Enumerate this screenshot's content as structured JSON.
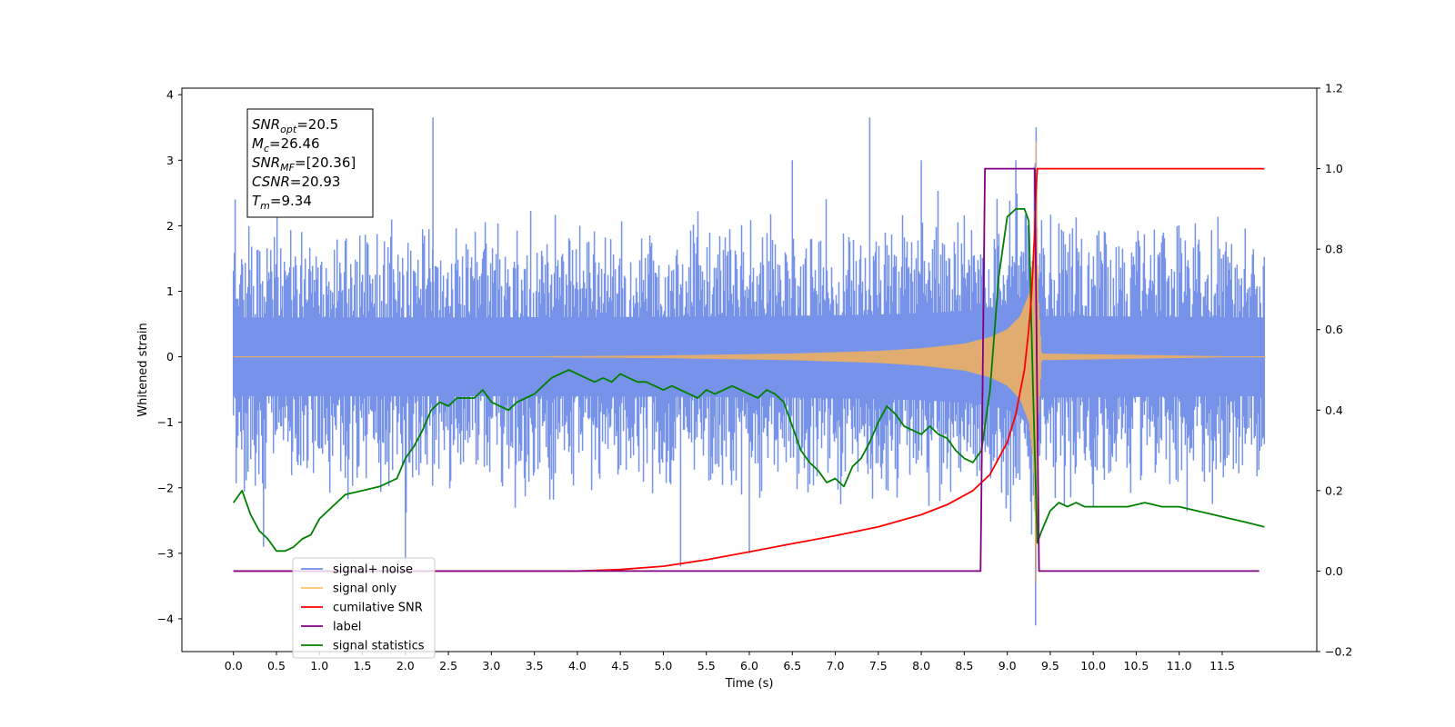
{
  "chart_data": {
    "type": "line",
    "xlabel": "Time (s)",
    "ylabel_left": "Whitened strain",
    "ylabel_right": "",
    "xlim": [
      -0.6,
      12.6
    ],
    "ylim_left": [
      -4.5,
      4.1
    ],
    "ylim_right": [
      -0.2,
      1.2
    ],
    "x_ticks": [
      0.0,
      0.5,
      1.0,
      1.5,
      2.0,
      2.5,
      3.0,
      3.5,
      4.0,
      4.5,
      5.0,
      5.5,
      6.0,
      6.5,
      7.0,
      7.5,
      8.0,
      8.5,
      9.0,
      9.5,
      10.0,
      10.5,
      11.0,
      11.5
    ],
    "x_tick_labels": [
      "0.0",
      "0.5",
      "1.0",
      "1.5",
      "2.0",
      "2.5",
      "3.0",
      "3.5",
      "4.0",
      "4.5",
      "5.0",
      "5.5",
      "6.0",
      "6.5",
      "7.0",
      "7.5",
      "8.0",
      "8.5",
      "9.0",
      "9.5",
      "10.0",
      "10.5",
      "11.0",
      "11.5"
    ],
    "y_left_ticks": [
      -4,
      -3,
      -2,
      -1,
      0,
      1,
      2,
      3,
      4
    ],
    "y_left_tick_labels": [
      "−4",
      "−3",
      "−2",
      "−1",
      "0",
      "1",
      "2",
      "3",
      "4"
    ],
    "y_right_ticks": [
      -0.2,
      0.0,
      0.2,
      0.4,
      0.6,
      0.8,
      1.0,
      1.2
    ],
    "y_right_tick_labels": [
      "−0.2",
      "0.0",
      "0.2",
      "0.4",
      "0.6",
      "0.8",
      "1.0",
      "1.2"
    ],
    "grid": false,
    "legend_position": "lower-left",
    "legend": [
      {
        "label": "signal+ noise",
        "color": "#6f8ce8"
      },
      {
        "label": "signal only",
        "color": "#ffc266"
      },
      {
        "label": "cumilative SNR",
        "color": "#ff0000"
      },
      {
        "label": "label",
        "color": "#800080"
      },
      {
        "label": "signal statistics",
        "color": "#008000"
      }
    ],
    "annotation": {
      "lines": [
        {
          "base": "SNR",
          "sub": "opt",
          "rest": "=20.5"
        },
        {
          "base": "M",
          "sub": "c",
          "rest": "=26.46"
        },
        {
          "base": "SNR",
          "sub": "MF",
          "rest": "=[20.36]"
        },
        {
          "base": "CSNR",
          "sub": "",
          "rest": "=20.93"
        },
        {
          "base": "T",
          "sub": "m",
          "rest": "=9.34"
        }
      ]
    },
    "series": [
      {
        "name": "signal+ noise",
        "axis": "left",
        "color": "#6f8ce8",
        "style": "noise",
        "x_range": [
          0.0,
          11.99
        ],
        "typical_range": [
          -1.6,
          1.7
        ],
        "peaks_x": [
          0.02,
          0.35,
          2.0,
          2.32,
          5.2,
          6.0,
          6.5,
          7.4,
          8.0,
          9.1,
          9.33
        ],
        "peaks_y": [
          2.4,
          -2.9,
          -3.1,
          3.65,
          -3.2,
          -3.0,
          3.0,
          3.65,
          3.0,
          3.0,
          -4.1
        ]
      },
      {
        "name": "signal only",
        "axis": "left",
        "color": "#f4b05a",
        "style": "chirp",
        "x": [
          0.0,
          3.0,
          5.0,
          6.5,
          7.5,
          8.0,
          8.5,
          8.8,
          9.0,
          9.15,
          9.25,
          9.3,
          9.32,
          9.34,
          9.36,
          9.4,
          12.0
        ],
        "envelope": [
          0.0,
          0.005,
          0.02,
          0.05,
          0.09,
          0.13,
          0.2,
          0.3,
          0.42,
          0.62,
          0.95,
          1.5,
          2.5,
          3.5,
          1.0,
          0.05,
          0.0
        ],
        "y_min": -3.7,
        "y_max": 3.55
      },
      {
        "name": "cumilative SNR",
        "axis": "right",
        "x": [
          0.0,
          4.0,
          4.5,
          5.0,
          5.5,
          6.0,
          6.5,
          7.0,
          7.5,
          8.0,
          8.3,
          8.6,
          8.8,
          9.0,
          9.1,
          9.2,
          9.25,
          9.28,
          9.3,
          9.32,
          9.33,
          9.34,
          9.35,
          11.99
        ],
        "values": [
          0.0,
          0.0,
          0.004,
          0.012,
          0.028,
          0.048,
          0.068,
          0.088,
          0.11,
          0.14,
          0.165,
          0.2,
          0.24,
          0.32,
          0.39,
          0.5,
          0.6,
          0.68,
          0.76,
          0.85,
          0.92,
          0.97,
          1.0,
          1.0
        ],
        "color": "#ff0000"
      },
      {
        "name": "label",
        "axis": "right",
        "x": [
          0.0,
          8.69,
          8.74,
          9.32,
          9.37,
          11.93
        ],
        "values": [
          0.0,
          0.0,
          1.0,
          1.0,
          0.0,
          0.0
        ],
        "color": "#800080"
      },
      {
        "name": "signal statistics",
        "axis": "right",
        "x": [
          0.0,
          0.1,
          0.2,
          0.3,
          0.4,
          0.5,
          0.6,
          0.7,
          0.8,
          0.9,
          1.0,
          1.1,
          1.2,
          1.3,
          1.5,
          1.7,
          1.9,
          2.0,
          2.1,
          2.2,
          2.3,
          2.4,
          2.5,
          2.6,
          2.8,
          2.9,
          3.0,
          3.1,
          3.2,
          3.3,
          3.4,
          3.5,
          3.6,
          3.7,
          3.8,
          3.9,
          4.0,
          4.1,
          4.2,
          4.3,
          4.4,
          4.5,
          4.6,
          4.7,
          4.8,
          4.9,
          5.0,
          5.1,
          5.2,
          5.3,
          5.4,
          5.5,
          5.6,
          5.7,
          5.8,
          5.9,
          6.0,
          6.1,
          6.2,
          6.3,
          6.4,
          6.5,
          6.6,
          6.7,
          6.8,
          6.9,
          7.0,
          7.1,
          7.2,
          7.3,
          7.4,
          7.5,
          7.6,
          7.7,
          7.8,
          7.9,
          8.0,
          8.1,
          8.2,
          8.3,
          8.4,
          8.5,
          8.6,
          8.7,
          8.8,
          8.9,
          9.0,
          9.1,
          9.2,
          9.25,
          9.3,
          9.35,
          9.4,
          9.5,
          9.6,
          9.7,
          9.8,
          9.9,
          10.0,
          10.2,
          10.4,
          10.6,
          10.8,
          11.0,
          11.2,
          11.4,
          11.6,
          11.8,
          11.99
        ],
        "values": [
          0.17,
          0.2,
          0.14,
          0.1,
          0.08,
          0.05,
          0.05,
          0.06,
          0.08,
          0.09,
          0.13,
          0.15,
          0.17,
          0.19,
          0.2,
          0.21,
          0.23,
          0.28,
          0.31,
          0.35,
          0.4,
          0.42,
          0.41,
          0.43,
          0.43,
          0.45,
          0.42,
          0.41,
          0.4,
          0.42,
          0.43,
          0.44,
          0.46,
          0.48,
          0.49,
          0.5,
          0.49,
          0.48,
          0.47,
          0.48,
          0.47,
          0.49,
          0.48,
          0.47,
          0.47,
          0.46,
          0.45,
          0.46,
          0.45,
          0.44,
          0.43,
          0.45,
          0.44,
          0.45,
          0.46,
          0.45,
          0.44,
          0.43,
          0.45,
          0.44,
          0.42,
          0.36,
          0.3,
          0.27,
          0.25,
          0.22,
          0.23,
          0.21,
          0.26,
          0.28,
          0.32,
          0.37,
          0.41,
          0.39,
          0.36,
          0.35,
          0.34,
          0.36,
          0.34,
          0.33,
          0.3,
          0.28,
          0.27,
          0.3,
          0.45,
          0.73,
          0.88,
          0.9,
          0.9,
          0.87,
          0.45,
          0.07,
          0.1,
          0.15,
          0.17,
          0.16,
          0.17,
          0.16,
          0.16,
          0.16,
          0.16,
          0.17,
          0.16,
          0.16,
          0.15,
          0.14,
          0.13,
          0.12,
          0.11
        ],
        "color": "#008000"
      }
    ]
  }
}
